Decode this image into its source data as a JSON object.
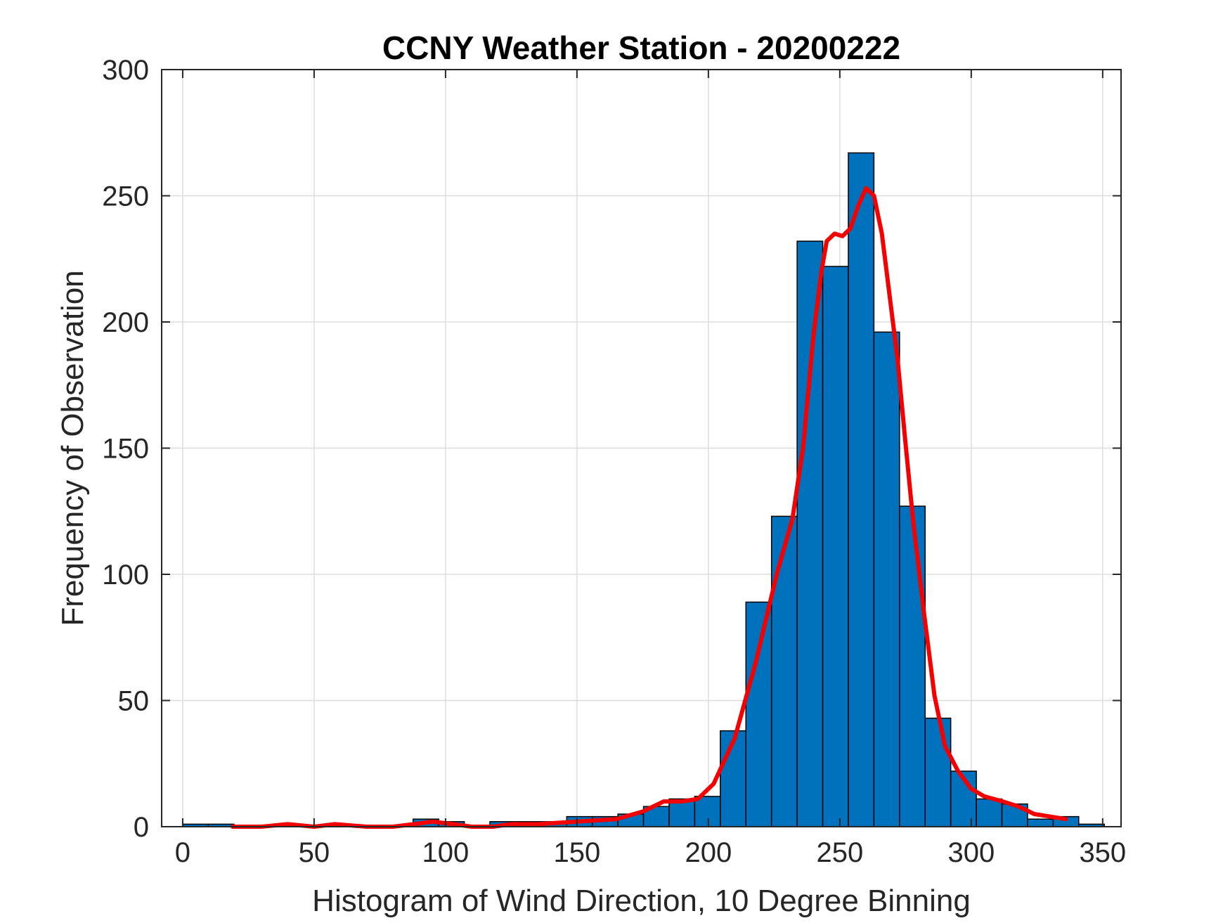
{
  "chart_data": {
    "type": "bar",
    "title": "CCNY Weather Station - 20200222",
    "xlabel": "Histogram of Wind Direction, 10 Degree Binning",
    "ylabel": "Frequency of Observation",
    "xlim": [
      -8,
      357
    ],
    "ylim": [
      0,
      300
    ],
    "xticks": [
      0,
      50,
      100,
      150,
      200,
      250,
      300,
      350
    ],
    "yticks": [
      0,
      50,
      100,
      150,
      200,
      250,
      300
    ],
    "grid": true,
    "bin_width": 9.74,
    "bins": [
      {
        "start": 0.0,
        "value": 1
      },
      {
        "start": 9.74,
        "value": 1
      },
      {
        "start": 87.66,
        "value": 3
      },
      {
        "start": 97.4,
        "value": 2
      },
      {
        "start": 116.88,
        "value": 2
      },
      {
        "start": 126.62,
        "value": 2
      },
      {
        "start": 136.36,
        "value": 2
      },
      {
        "start": 146.1,
        "value": 4
      },
      {
        "start": 155.84,
        "value": 4
      },
      {
        "start": 165.58,
        "value": 5
      },
      {
        "start": 175.32,
        "value": 8
      },
      {
        "start": 185.06,
        "value": 11
      },
      {
        "start": 194.8,
        "value": 12
      },
      {
        "start": 204.54,
        "value": 38
      },
      {
        "start": 214.28,
        "value": 89
      },
      {
        "start": 224.02,
        "value": 123
      },
      {
        "start": 233.76,
        "value": 232
      },
      {
        "start": 243.5,
        "value": 222
      },
      {
        "start": 253.24,
        "value": 267
      },
      {
        "start": 262.98,
        "value": 196
      },
      {
        "start": 272.72,
        "value": 127
      },
      {
        "start": 282.46,
        "value": 43
      },
      {
        "start": 292.2,
        "value": 22
      },
      {
        "start": 301.94,
        "value": 11
      },
      {
        "start": 311.68,
        "value": 9
      },
      {
        "start": 321.42,
        "value": 3
      },
      {
        "start": 331.16,
        "value": 4
      },
      {
        "start": 340.9,
        "value": 1
      }
    ],
    "fit_curve": {
      "type": "line",
      "points": [
        [
          19,
          0
        ],
        [
          30,
          0
        ],
        [
          40,
          1
        ],
        [
          50,
          0
        ],
        [
          58,
          1
        ],
        [
          70,
          0
        ],
        [
          80,
          0
        ],
        [
          88,
          1
        ],
        [
          95,
          2
        ],
        [
          103,
          1
        ],
        [
          110,
          0
        ],
        [
          118,
          0
        ],
        [
          125,
          1
        ],
        [
          135,
          1
        ],
        [
          150,
          2
        ],
        [
          165,
          3
        ],
        [
          175,
          6
        ],
        [
          183,
          10
        ],
        [
          190,
          10
        ],
        [
          196,
          11
        ],
        [
          202,
          17
        ],
        [
          210,
          35
        ],
        [
          218,
          65
        ],
        [
          226,
          100
        ],
        [
          232,
          122
        ],
        [
          236,
          150
        ],
        [
          240,
          195
        ],
        [
          243,
          220
        ],
        [
          245,
          232
        ],
        [
          248,
          235
        ],
        [
          251,
          234
        ],
        [
          254,
          237
        ],
        [
          257,
          246
        ],
        [
          260,
          253
        ],
        [
          263,
          250
        ],
        [
          266,
          235
        ],
        [
          269,
          210
        ],
        [
          272,
          185
        ],
        [
          275,
          152
        ],
        [
          278,
          120
        ],
        [
          282,
          85
        ],
        [
          286,
          52
        ],
        [
          290,
          32
        ],
        [
          295,
          22
        ],
        [
          300,
          15
        ],
        [
          305,
          12
        ],
        [
          312,
          10
        ],
        [
          318,
          8
        ],
        [
          324,
          5
        ],
        [
          330,
          4
        ],
        [
          336,
          3
        ]
      ]
    }
  },
  "colors": {
    "bar_fill": "#0072BD",
    "fit_curve": "#F50000"
  }
}
